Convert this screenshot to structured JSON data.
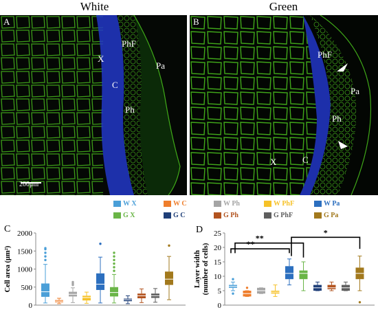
{
  "titles": {
    "left": "White",
    "right": "Green"
  },
  "panel_a": {
    "letter": "A",
    "labels": {
      "x": "X",
      "phf": "PhF",
      "c": "C",
      "ph": "Ph",
      "pa": "Pa"
    },
    "scale": "200μm"
  },
  "panel_b": {
    "letter": "B",
    "labels": {
      "phf": "PhF",
      "pa": "Pa",
      "ph": "Ph",
      "x": "X",
      "c": "C"
    }
  },
  "legend": [
    {
      "label": "W X",
      "color": "#4a9fd8"
    },
    {
      "label": "W C",
      "color": "#ef7e2c"
    },
    {
      "label": "W Ph",
      "color": "#a5a5a5"
    },
    {
      "label": "W PhF",
      "color": "#f6c229"
    },
    {
      "label": "W Pa",
      "color": "#2c6fbf"
    },
    {
      "label": "G X",
      "color": "#6ab547"
    },
    {
      "label": "G C",
      "color": "#1f3f78"
    },
    {
      "label": "G Ph",
      "color": "#b2531f"
    },
    {
      "label": "G PhF",
      "color": "#5e5e5e"
    },
    {
      "label": "G Pa",
      "color": "#a2791d"
    }
  ],
  "chart_data": [
    {
      "type": "box",
      "panel": "C",
      "ylabel": "Cell area (μm²)",
      "ylim": [
        0,
        2000
      ],
      "yticks": [
        "0",
        "500",
        "1000",
        "1500",
        "2000"
      ],
      "series": [
        {
          "name": "W X",
          "min": 60,
          "q1": 230,
          "median": 370,
          "q3": 600,
          "max": 1130,
          "outliers": [
            1250,
            1350,
            1450,
            1550,
            1580
          ]
        },
        {
          "name": "W C",
          "min": 40,
          "q1": 80,
          "median": 110,
          "q3": 140,
          "max": 190,
          "outliers": []
        },
        {
          "name": "W Ph",
          "min": 70,
          "q1": 240,
          "median": 300,
          "q3": 370,
          "max": 480,
          "outliers": [
            560,
            600,
            640
          ]
        },
        {
          "name": "W PhF",
          "min": 50,
          "q1": 130,
          "median": 210,
          "q3": 260,
          "max": 360,
          "outliers": []
        },
        {
          "name": "W Pa",
          "min": 60,
          "q1": 420,
          "median": 580,
          "q3": 880,
          "max": 1330,
          "outliers": [
            1700
          ]
        },
        {
          "name": "G X",
          "min": 60,
          "q1": 240,
          "median": 350,
          "q3": 500,
          "max": 850,
          "outliers": [
            950,
            1050,
            1150,
            1250,
            1350,
            1450
          ]
        },
        {
          "name": "G C",
          "min": 40,
          "q1": 110,
          "median": 150,
          "q3": 180,
          "max": 260,
          "outliers": []
        },
        {
          "name": "G Ph",
          "min": 70,
          "q1": 190,
          "median": 260,
          "q3": 320,
          "max": 450,
          "outliers": []
        },
        {
          "name": "G PhF",
          "min": 80,
          "q1": 200,
          "median": 260,
          "q3": 320,
          "max": 460,
          "outliers": []
        },
        {
          "name": "G Pa",
          "min": 150,
          "q1": 560,
          "median": 720,
          "q3": 930,
          "max": 1350,
          "outliers": [
            1650
          ]
        }
      ]
    },
    {
      "type": "box",
      "panel": "D",
      "ylabel": "Layer width (number of cells)",
      "ylim": [
        0,
        25
      ],
      "yticks": [
        "0",
        "5",
        "10",
        "15",
        "20",
        "25"
      ],
      "series": [
        {
          "name": "W X",
          "min": 5,
          "q1": 6,
          "median": 6.5,
          "q3": 7,
          "max": 8,
          "outliers": [
            4,
            9
          ]
        },
        {
          "name": "W C",
          "min": 3,
          "q1": 3,
          "median": 4,
          "q3": 5,
          "max": 5,
          "outliers": [
            6
          ]
        },
        {
          "name": "W Ph",
          "min": 4,
          "q1": 4,
          "median": 5,
          "q3": 6,
          "max": 6,
          "outliers": []
        },
        {
          "name": "W PhF",
          "min": 3,
          "q1": 4,
          "median": 4.5,
          "q3": 5,
          "max": 7,
          "outliers": []
        },
        {
          "name": "W Pa",
          "min": 7,
          "q1": 9,
          "median": 11,
          "q3": 13.5,
          "max": 16,
          "outliers": []
        },
        {
          "name": "G X",
          "min": 5,
          "q1": 9,
          "median": 11,
          "q3": 12,
          "max": 15,
          "outliers": []
        },
        {
          "name": "G C",
          "min": 5,
          "q1": 5,
          "median": 6,
          "q3": 7,
          "max": 8,
          "outliers": []
        },
        {
          "name": "G Ph",
          "min": 5,
          "q1": 5.5,
          "median": 6,
          "q3": 7,
          "max": 8,
          "outliers": []
        },
        {
          "name": "G PhF",
          "min": 5,
          "q1": 5,
          "median": 6,
          "q3": 7,
          "max": 8,
          "outliers": []
        },
        {
          "name": "G Pa",
          "min": 5,
          "q1": 9,
          "median": 11,
          "q3": 13,
          "max": 17,
          "outliers": [
            1
          ]
        }
      ],
      "significance": [
        {
          "label": "**",
          "from": "W X",
          "to": "W Pa"
        },
        {
          "label": "**",
          "from": "W X",
          "to": "G X"
        },
        {
          "label": "*",
          "from": "W Pa",
          "to": "G Pa"
        }
      ]
    }
  ]
}
